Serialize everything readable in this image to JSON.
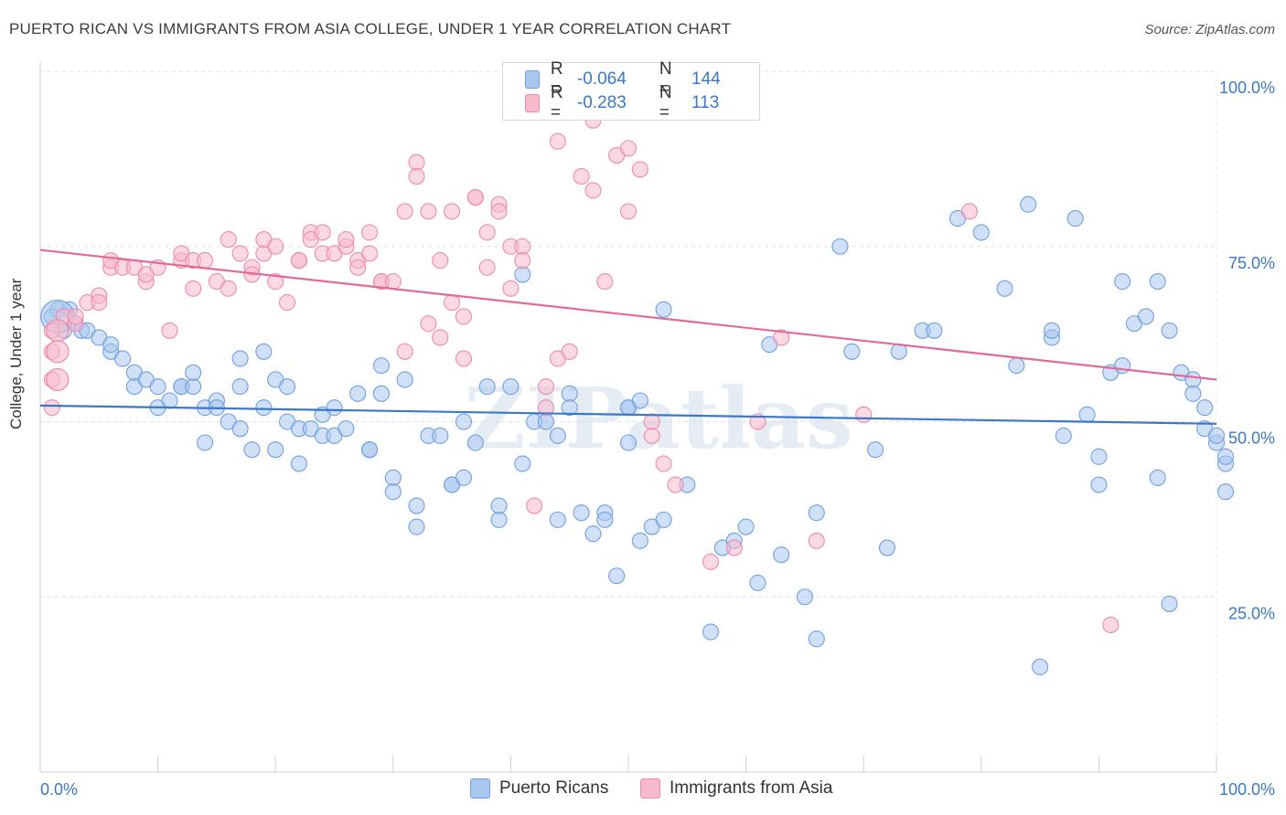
{
  "title": "PUERTO RICAN VS IMMIGRANTS FROM ASIA COLLEGE, UNDER 1 YEAR CORRELATION CHART",
  "source": "Source: ZipAtlas.com",
  "watermark": "ZIPatlas",
  "legend": {
    "r_label": "R =",
    "n_label": "N =",
    "rows": [
      {
        "r": "-0.064",
        "n": "144",
        "color": "#a9c6ef"
      },
      {
        "r": "-0.283",
        "n": "113",
        "color": "#f7b9cc"
      }
    ]
  },
  "chart_data": {
    "type": "scatter",
    "xlabel": "",
    "ylabel": "College, Under 1 year",
    "x_tick_labels": [
      "0.0%",
      "100.0%"
    ],
    "y_tick_labels": [
      "100.0%",
      "75.0%",
      "50.0%",
      "25.0%"
    ],
    "xlim": [
      0,
      100
    ],
    "ylim": [
      0,
      100
    ],
    "grid": true,
    "series": [
      {
        "name": "Puerto Ricans",
        "color": "#6fa0e0",
        "fill": "#a9c6ef",
        "line_color": "#3a78c9",
        "trend": [
          [
            0,
            52.3
          ],
          [
            100,
            49.7
          ]
        ],
        "points": [
          [
            1,
            65
          ],
          [
            1.5,
            66
          ],
          [
            2,
            63
          ],
          [
            2.5,
            66
          ],
          [
            3,
            64
          ],
          [
            3.5,
            63
          ],
          [
            4,
            63
          ],
          [
            5,
            62
          ],
          [
            6,
            60
          ],
          [
            6,
            61
          ],
          [
            7,
            59
          ],
          [
            8,
            57
          ],
          [
            8,
            55
          ],
          [
            9,
            56
          ],
          [
            10,
            55
          ],
          [
            10,
            52
          ],
          [
            11,
            53
          ],
          [
            12,
            55
          ],
          [
            12,
            55
          ],
          [
            13,
            55
          ],
          [
            13,
            57
          ],
          [
            14,
            52
          ],
          [
            14,
            47
          ],
          [
            15,
            53
          ],
          [
            15,
            52
          ],
          [
            16,
            50
          ],
          [
            17,
            49
          ],
          [
            17,
            59
          ],
          [
            17,
            55
          ],
          [
            18,
            46
          ],
          [
            19,
            52
          ],
          [
            19,
            60
          ],
          [
            20,
            56
          ],
          [
            20,
            46
          ],
          [
            21,
            55
          ],
          [
            21,
            50
          ],
          [
            22,
            44
          ],
          [
            22,
            49
          ],
          [
            23,
            49
          ],
          [
            24,
            51
          ],
          [
            24,
            48
          ],
          [
            25,
            52
          ],
          [
            25,
            48
          ],
          [
            26,
            49
          ],
          [
            27,
            54
          ],
          [
            28,
            46
          ],
          [
            28,
            46
          ],
          [
            29,
            58
          ],
          [
            29,
            54
          ],
          [
            30,
            42
          ],
          [
            30,
            40
          ],
          [
            31,
            56
          ],
          [
            32,
            38
          ],
          [
            32,
            35
          ],
          [
            33,
            48
          ],
          [
            34,
            48
          ],
          [
            35,
            41
          ],
          [
            35,
            41
          ],
          [
            36,
            50
          ],
          [
            36,
            42
          ],
          [
            37,
            47
          ],
          [
            38,
            55
          ],
          [
            39,
            36
          ],
          [
            39,
            38
          ],
          [
            40,
            55
          ],
          [
            41,
            44
          ],
          [
            41,
            71
          ],
          [
            42,
            50
          ],
          [
            43,
            50
          ],
          [
            44,
            36
          ],
          [
            44,
            48
          ],
          [
            45,
            54
          ],
          [
            45,
            52
          ],
          [
            46,
            37
          ],
          [
            47,
            34
          ],
          [
            48,
            37
          ],
          [
            48,
            36
          ],
          [
            49,
            28
          ],
          [
            50,
            52
          ],
          [
            50,
            52
          ],
          [
            50,
            47
          ],
          [
            51,
            53
          ],
          [
            51,
            33
          ],
          [
            52,
            35
          ],
          [
            53,
            36
          ],
          [
            53,
            66
          ],
          [
            55,
            41
          ],
          [
            57,
            20
          ],
          [
            58,
            32
          ],
          [
            59,
            33
          ],
          [
            60,
            35
          ],
          [
            61,
            27
          ],
          [
            62,
            61
          ],
          [
            63,
            31
          ],
          [
            65,
            25
          ],
          [
            66,
            19
          ],
          [
            66,
            37
          ],
          [
            68,
            75
          ],
          [
            69,
            60
          ],
          [
            71,
            46
          ],
          [
            72,
            32
          ],
          [
            73,
            60
          ],
          [
            75,
            63
          ],
          [
            76,
            63
          ],
          [
            78,
            79
          ],
          [
            80,
            77
          ],
          [
            82,
            69
          ],
          [
            83,
            58
          ],
          [
            84,
            81
          ],
          [
            86,
            62
          ],
          [
            86,
            63
          ],
          [
            87,
            48
          ],
          [
            88,
            79
          ],
          [
            89,
            51
          ],
          [
            90,
            41
          ],
          [
            90,
            45
          ],
          [
            91,
            57
          ],
          [
            92,
            70
          ],
          [
            92,
            58
          ],
          [
            93,
            64
          ],
          [
            94,
            65
          ],
          [
            95,
            42
          ],
          [
            95,
            70
          ],
          [
            96,
            63
          ],
          [
            96,
            24
          ],
          [
            97,
            57
          ],
          [
            98,
            54
          ],
          [
            98,
            56
          ],
          [
            99,
            52
          ],
          [
            99,
            49
          ],
          [
            100,
            47
          ],
          [
            100,
            48
          ],
          [
            101,
            44
          ],
          [
            101,
            45
          ],
          [
            102,
            40
          ],
          [
            85,
            15
          ]
        ],
        "large_point": [
          1,
          65
        ]
      },
      {
        "name": "Immigrants from Asia",
        "color": "#ee8aab",
        "fill": "#f7b9cc",
        "line_color": "#e2699a",
        "trend": [
          [
            0,
            74.5
          ],
          [
            100,
            56.0
          ]
        ],
        "points": [
          [
            1,
            63
          ],
          [
            1,
            60
          ],
          [
            1,
            56
          ],
          [
            2,
            65
          ],
          [
            3,
            64
          ],
          [
            3,
            65
          ],
          [
            4,
            67
          ],
          [
            5,
            68
          ],
          [
            5,
            67
          ],
          [
            6,
            72
          ],
          [
            6,
            73
          ],
          [
            7,
            72
          ],
          [
            8,
            72
          ],
          [
            9,
            70
          ],
          [
            9,
            71
          ],
          [
            10,
            72
          ],
          [
            11,
            63
          ],
          [
            12,
            73
          ],
          [
            12,
            74
          ],
          [
            13,
            69
          ],
          [
            13,
            73
          ],
          [
            14,
            73
          ],
          [
            15,
            70
          ],
          [
            16,
            76
          ],
          [
            16,
            69
          ],
          [
            17,
            74
          ],
          [
            18,
            72
          ],
          [
            18,
            71
          ],
          [
            19,
            74
          ],
          [
            19,
            76
          ],
          [
            20,
            75
          ],
          [
            20,
            70
          ],
          [
            21,
            67
          ],
          [
            22,
            73
          ],
          [
            22,
            73
          ],
          [
            23,
            77
          ],
          [
            23,
            76
          ],
          [
            24,
            77
          ],
          [
            24,
            74
          ],
          [
            25,
            74
          ],
          [
            26,
            75
          ],
          [
            26,
            76
          ],
          [
            27,
            73
          ],
          [
            27,
            72
          ],
          [
            28,
            74
          ],
          [
            28,
            77
          ],
          [
            29,
            70
          ],
          [
            29,
            70
          ],
          [
            30,
            70
          ],
          [
            31,
            80
          ],
          [
            31,
            60
          ],
          [
            32,
            87
          ],
          [
            32,
            85
          ],
          [
            33,
            64
          ],
          [
            33,
            80
          ],
          [
            34,
            73
          ],
          [
            34,
            62
          ],
          [
            35,
            67
          ],
          [
            35,
            80
          ],
          [
            36,
            65
          ],
          [
            36,
            59
          ],
          [
            37,
            82
          ],
          [
            37,
            82
          ],
          [
            38,
            77
          ],
          [
            38,
            72
          ],
          [
            39,
            81
          ],
          [
            39,
            80
          ],
          [
            40,
            69
          ],
          [
            40,
            75
          ],
          [
            41,
            75
          ],
          [
            41,
            73
          ],
          [
            42,
            38
          ],
          [
            43,
            55
          ],
          [
            43,
            52
          ],
          [
            44,
            90
          ],
          [
            44,
            59
          ],
          [
            45,
            60
          ],
          [
            46,
            85
          ],
          [
            47,
            83
          ],
          [
            47,
            93
          ],
          [
            48,
            70
          ],
          [
            49,
            88
          ],
          [
            50,
            89
          ],
          [
            50,
            80
          ],
          [
            51,
            86
          ],
          [
            52,
            48
          ],
          [
            52,
            50
          ],
          [
            53,
            44
          ],
          [
            54,
            41
          ],
          [
            59,
            32
          ],
          [
            57,
            30
          ],
          [
            61,
            50
          ],
          [
            63,
            62
          ],
          [
            66,
            33
          ],
          [
            70,
            51
          ],
          [
            79,
            80
          ],
          [
            91,
            21
          ],
          [
            1,
            52
          ]
        ],
        "large_points": [
          [
            1,
            63
          ],
          [
            1,
            60
          ],
          [
            1,
            56
          ]
        ]
      }
    ]
  },
  "bottom_legend": [
    "Puerto Ricans",
    "Immigrants from Asia"
  ]
}
